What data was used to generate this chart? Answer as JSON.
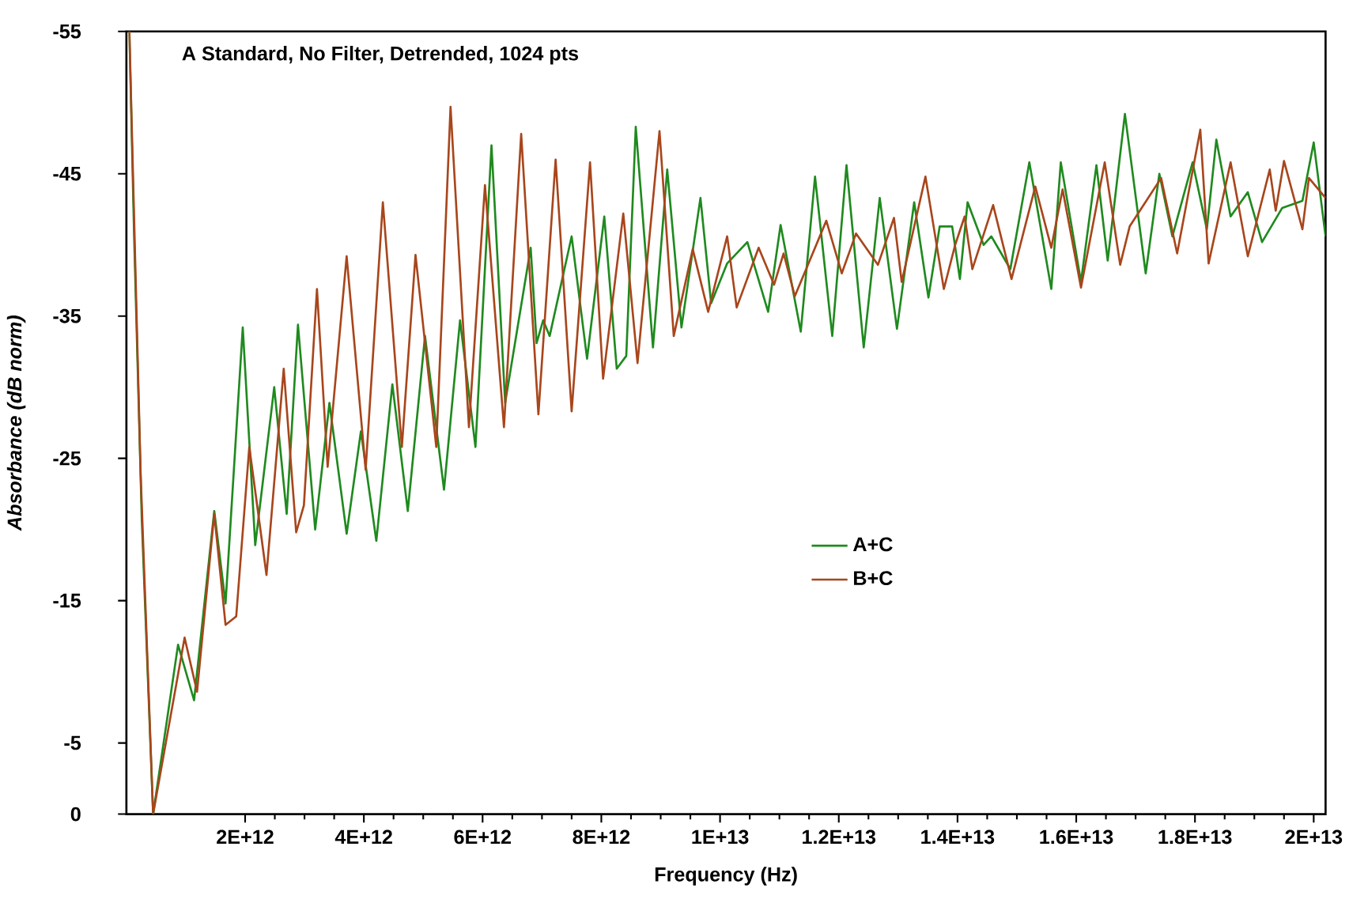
{
  "chart_data": {
    "type": "line",
    "title": "A Standard, No Filter, Detrended, 1024 pts",
    "xlabel": "Frequency (Hz)",
    "ylabel": "Absorbance (dB norm)",
    "xlim": [
      0,
      20200000000000.0
    ],
    "ylim": [
      0,
      -55
    ],
    "xticks": [
      {
        "value": 2000000000000.0,
        "label": "2E+12"
      },
      {
        "value": 4000000000000.0,
        "label": "4E+12"
      },
      {
        "value": 6000000000000.0,
        "label": "6E+12"
      },
      {
        "value": 8000000000000.0,
        "label": "8E+12"
      },
      {
        "value": 10000000000000.0,
        "label": "1E+13"
      },
      {
        "value": 12000000000000.0,
        "label": "1.2E+13"
      },
      {
        "value": 14000000000000.0,
        "label": "1.4E+13"
      },
      {
        "value": 16000000000000.0,
        "label": "1.6E+13"
      },
      {
        "value": 18000000000000.0,
        "label": "1.8E+13"
      },
      {
        "value": 20000000000000.0,
        "label": "2E+13"
      }
    ],
    "yticks": [
      0,
      -5,
      -15,
      -25,
      -35,
      -45,
      -55
    ],
    "grid": false,
    "legend": "center",
    "marker": "none",
    "line_style": "solid",
    "series": [
      {
        "name": "A+C",
        "color": "#1f8a1f",
        "x": [
          50000000000.0,
          130000000000.0,
          260000000000.0,
          450000000000.0,
          870000000000.0,
          1140000000000.0,
          1480000000000.0,
          1670000000000.0,
          1960000000000.0,
          2170000000000.0,
          2490000000000.0,
          2700000000000.0,
          2890000000000.0,
          3180000000000.0,
          3420000000000.0,
          3710000000000.0,
          3950000000000.0,
          4210000000000.0,
          4480000000000.0,
          4740000000000.0,
          5030000000000.0,
          5350000000000.0,
          5620000000000.0,
          5880000000000.0,
          6150000000000.0,
          6380000000000.0,
          6810000000000.0,
          6910000000000.0,
          7020000000000.0,
          7130000000000.0,
          7500000000000.0,
          7760000000000.0,
          8050000000000.0,
          8260000000000.0,
          8420000000000.0,
          8580000000000.0,
          8870000000000.0,
          9110000000000.0,
          9350000000000.0,
          9670000000000.0,
          9850000000000.0,
          10120000000000.0,
          10460000000000.0,
          10810000000000.0,
          11020000000000.0,
          11360000000000.0,
          11600000000000.0,
          11890000000000.0,
          12130000000000.0,
          12420000000000.0,
          12690000000000.0,
          12980000000000.0,
          13270000000000.0,
          13510000000000.0,
          13700000000000.0,
          13910000000000.0,
          14040000000000.0,
          14170000000000.0,
          14440000000000.0,
          14570000000000.0,
          14890000000000.0,
          15210000000000.0,
          15580000000000.0,
          15740000000000.0,
          16080000000000.0,
          16340000000000.0,
          16530000000000.0,
          16820000000000.0,
          17170000000000.0,
          17400000000000.0,
          17620000000000.0,
          17960000000000.0,
          18200000000000.0,
          18360000000000.0,
          18600000000000.0,
          18890000000000.0,
          19130000000000.0,
          19470000000000.0,
          19810000000000.0,
          20000000000000.0,
          20200000000000.0
        ],
        "values": [
          -55,
          -40.6,
          -20.6,
          0,
          -11.9,
          -8.0,
          -21.3,
          -14.8,
          -34.2,
          -18.9,
          -30.0,
          -21.1,
          -34.4,
          -20.0,
          -28.9,
          -19.7,
          -26.9,
          -19.2,
          -30.2,
          -21.3,
          -33.6,
          -22.8,
          -34.7,
          -25.8,
          -47.0,
          -28.9,
          -39.8,
          -33.1,
          -34.7,
          -33.6,
          -40.6,
          -32.0,
          -42.0,
          -31.3,
          -32.2,
          -48.3,
          -32.8,
          -45.3,
          -34.2,
          -43.3,
          -35.9,
          -38.7,
          -40.2,
          -35.3,
          -41.4,
          -33.9,
          -44.8,
          -33.6,
          -45.6,
          -32.8,
          -43.3,
          -34.1,
          -43.0,
          -36.3,
          -41.3,
          -41.3,
          -37.6,
          -43.0,
          -40.0,
          -40.6,
          -38.3,
          -45.8,
          -36.9,
          -45.8,
          -37.4,
          -45.6,
          -38.9,
          -49.2,
          -38.0,
          -45.0,
          -40.6,
          -45.8,
          -41.1,
          -47.4,
          -42.0,
          -43.7,
          -40.2,
          -42.6,
          -43.1,
          -47.2,
          -40.6
        ]
      },
      {
        "name": "B+C",
        "color": "#a8461c",
        "x": [
          50000000000.0,
          240000000000.0,
          450000000000.0,
          980000000000.0,
          1190000000000.0,
          1480000000000.0,
          1670000000000.0,
          1850000000000.0,
          2070000000000.0,
          2360000000000.0,
          2650000000000.0,
          2860000000000.0,
          2990000000000.0,
          3210000000000.0,
          3390000000000.0,
          3710000000000.0,
          4030000000000.0,
          4320000000000.0,
          4640000000000.0,
          4870000000000.0,
          5220000000000.0,
          5460000000000.0,
          5770000000000.0,
          6040000000000.0,
          6360000000000.0,
          6650000000000.0,
          6940000000000.0,
          7230000000000.0,
          7500000000000.0,
          7810000000000.0,
          8030000000000.0,
          8370000000000.0,
          8610000000000.0,
          8980000000000.0,
          9220000000000.0,
          9540000000000.0,
          9800000000000.0,
          10120000000000.0,
          10280000000000.0,
          10650000000000.0,
          10910000000000.0,
          11070000000000.0,
          11260000000000.0,
          11790000000000.0,
          12050000000000.0,
          12290000000000.0,
          12660000000000.0,
          12930000000000.0,
          13060000000000.0,
          13460000000000.0,
          13770000000000.0,
          13960000000000.0,
          14120000000000.0,
          14250000000000.0,
          14600000000000.0,
          14910000000000.0,
          15310000000000.0,
          15580000000000.0,
          15770000000000.0,
          16080000000000.0,
          16480000000000.0,
          16740000000000.0,
          16900000000000.0,
          17430000000000.0,
          17700000000000.0,
          18090000000000.0,
          18230000000000.0,
          18600000000000.0,
          18890000000000.0,
          19260000000000.0,
          19360000000000.0,
          19500000000000.0,
          19810000000000.0,
          19920000000000.0,
          20200000000000.0
        ],
        "values": [
          -55,
          -23.9,
          0,
          -12.4,
          -8.6,
          -21.1,
          -13.3,
          -13.9,
          -25.8,
          -16.8,
          -31.3,
          -19.8,
          -21.7,
          -36.9,
          -24.4,
          -39.2,
          -24.2,
          -43.0,
          -25.8,
          -39.3,
          -25.8,
          -49.7,
          -27.2,
          -44.2,
          -27.2,
          -47.8,
          -28.1,
          -46.0,
          -28.3,
          -45.8,
          -30.6,
          -42.2,
          -31.7,
          -48.0,
          -33.6,
          -39.7,
          -35.3,
          -40.6,
          -35.6,
          -39.8,
          -37.2,
          -39.4,
          -36.4,
          -41.7,
          -38.0,
          -40.8,
          -38.6,
          -41.9,
          -37.4,
          -44.8,
          -36.9,
          -40.0,
          -42.0,
          -38.3,
          -42.8,
          -37.6,
          -44.1,
          -39.8,
          -43.9,
          -37.0,
          -45.8,
          -38.6,
          -41.3,
          -44.7,
          -39.4,
          -48.1,
          -38.7,
          -45.8,
          -39.2,
          -45.3,
          -42.4,
          -45.9,
          -41.1,
          -44.7,
          -43.3
        ]
      }
    ]
  }
}
